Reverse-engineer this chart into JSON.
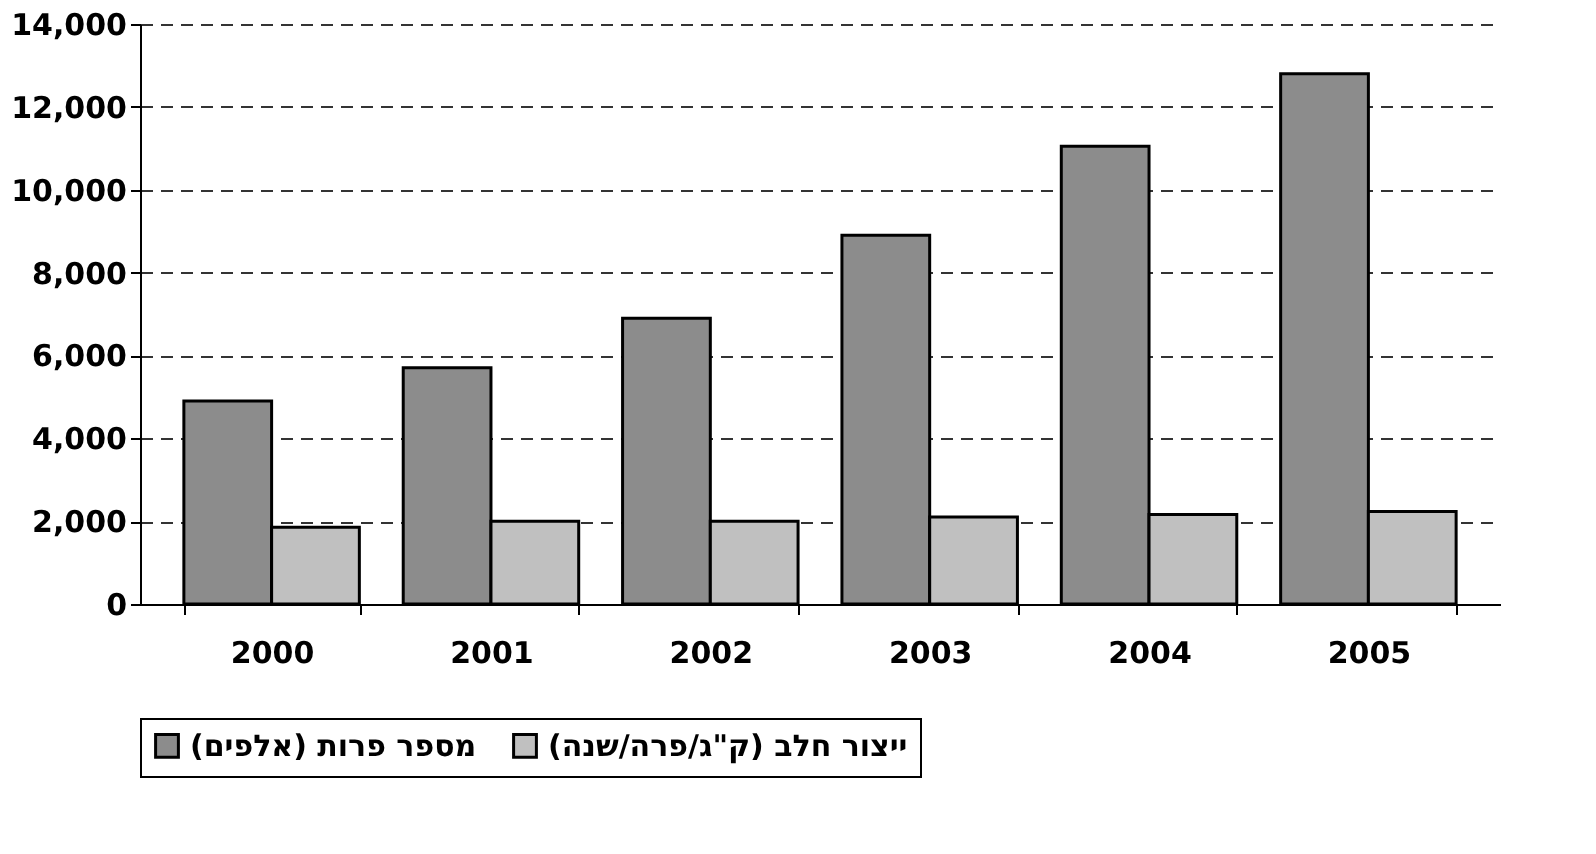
{
  "chart_data": {
    "type": "bar",
    "categories": [
      "2000",
      "2001",
      "2002",
      "2003",
      "2004",
      "2005"
    ],
    "series": [
      {
        "name": "מספר פרות (אלפים)",
        "color": "#8c8c8c",
        "values": [
          4900,
          5700,
          6900,
          8900,
          11050,
          12800
        ]
      },
      {
        "name": "ייצור חלב (ק\"ג/פרה/שנה)",
        "color": "#c0c0c0",
        "values": [
          1850,
          2000,
          2000,
          2100,
          2160,
          2230
        ]
      }
    ],
    "ylim": [
      0,
      14000
    ],
    "yticks": [
      0,
      {
        "value": 2000,
        "label": "2,000"
      },
      {
        "value": 4000,
        "label": "4,000"
      },
      {
        "value": 6000,
        "label": "6,000"
      },
      {
        "value": 8000,
        "label": "8,000"
      },
      {
        "value": 10000,
        "label": "10,000"
      },
      {
        "value": 12000,
        "label": "12,000"
      },
      {
        "value": 14000,
        "label": "14,000"
      }
    ],
    "grid": "y",
    "legend": "bottom"
  }
}
